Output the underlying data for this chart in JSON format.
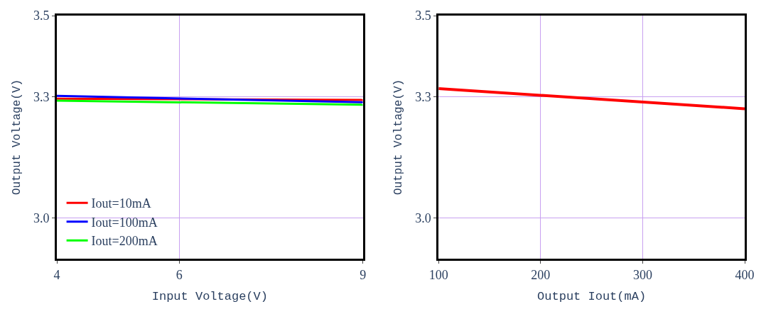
{
  "chart_data": [
    {
      "type": "line",
      "xlabel": "Input Voltage(V)",
      "ylabel": "Output Voltage(V)",
      "x": [
        4,
        9
      ],
      "xlim": [
        4,
        9
      ],
      "xticks": [
        4,
        6,
        9
      ],
      "ylim": [
        2.9,
        3.5
      ],
      "yticks": [
        {
          "value": 3.0,
          "label": "3.0"
        },
        {
          "value": 3.3,
          "label": "3.3"
        },
        {
          "value": 3.5,
          "label": "3.5"
        }
      ],
      "grid": true,
      "legend": "bottom left",
      "series": [
        {
          "name": "Iout=10mA",
          "color": "#ff0000",
          "values": [
            3.295,
            3.292
          ]
        },
        {
          "name": "Iout=100mA",
          "color": "#0000ff",
          "values": [
            3.302,
            3.286
          ]
        },
        {
          "name": "Iout=200mA",
          "color": "#00ff00",
          "values": [
            3.29,
            3.28
          ]
        }
      ]
    },
    {
      "type": "line",
      "xlabel": "Output Iout(mA)",
      "ylabel": "Output Voltage(V)",
      "x": [
        100,
        400
      ],
      "xlim": [
        100,
        400
      ],
      "xticks": [
        100,
        200,
        300,
        400
      ],
      "ylim": [
        2.9,
        3.5
      ],
      "yticks": [
        {
          "value": 3.0,
          "label": "3.0"
        },
        {
          "value": 3.3,
          "label": "3.3"
        },
        {
          "value": 3.5,
          "label": "3.5"
        }
      ],
      "grid": true,
      "series": [
        {
          "color": "#ff0000",
          "values": [
            3.32,
            3.27
          ]
        }
      ]
    }
  ]
}
